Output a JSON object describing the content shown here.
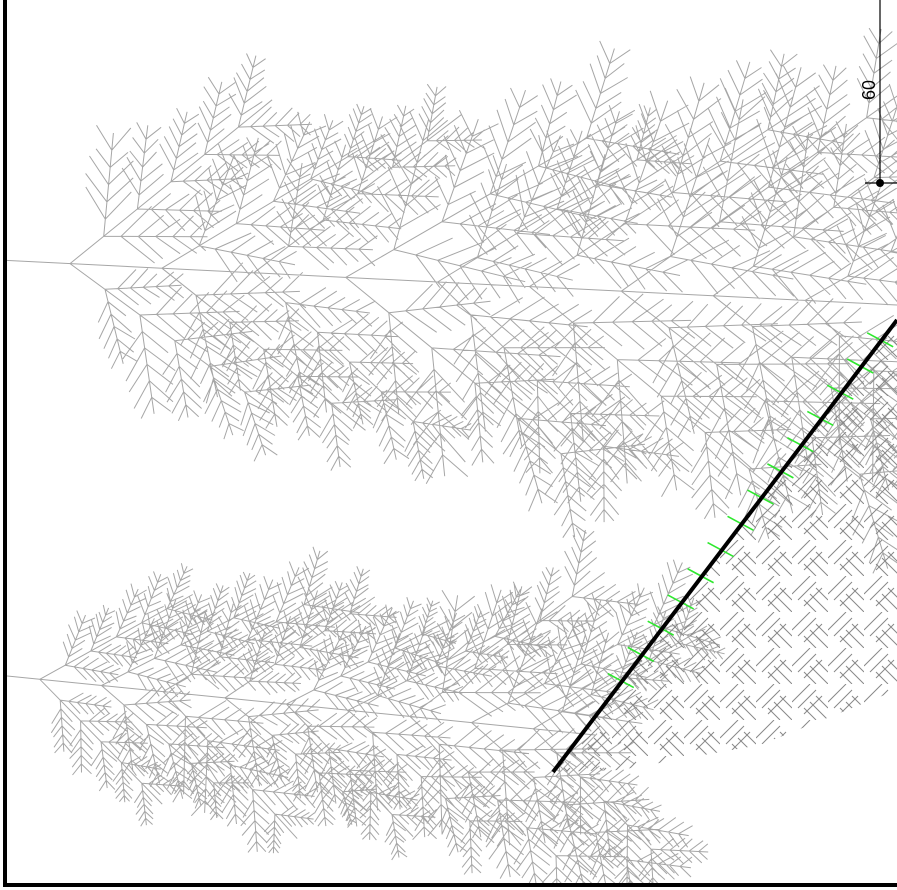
{
  "dimension_label": "60"
}
